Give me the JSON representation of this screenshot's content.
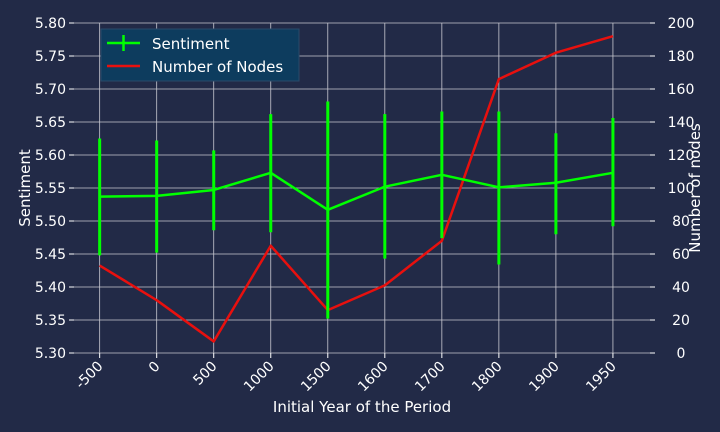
{
  "chart_data": {
    "type": "line",
    "categories": [
      "-500",
      "0",
      "500",
      "1000",
      "1500",
      "1600",
      "1700",
      "1800",
      "1900",
      "1950"
    ],
    "series": [
      {
        "name": "Sentiment",
        "axis": "left",
        "color": "#00ff00",
        "values": [
          5.537,
          5.538,
          5.547,
          5.573,
          5.517,
          5.552,
          5.57,
          5.551,
          5.558,
          5.573
        ],
        "error_low": [
          5.448,
          5.452,
          5.486,
          5.483,
          5.352,
          5.443,
          5.474,
          5.434,
          5.48,
          5.492
        ],
        "error_high": [
          5.625,
          5.622,
          5.607,
          5.662,
          5.681,
          5.662,
          5.666,
          5.666,
          5.633,
          5.656
        ]
      },
      {
        "name": "Number of Nodes",
        "axis": "right",
        "color": "#e8100e",
        "values": [
          53,
          32,
          7,
          65,
          26,
          41,
          68,
          166,
          182,
          192
        ]
      }
    ],
    "xlabel": "Initial Year of the Period",
    "ylabel": "Sentiment",
    "y2label": "Number of nodes",
    "ylim": [
      5.3,
      5.8
    ],
    "y2lim": [
      0,
      200
    ],
    "yticks": [
      "5.30",
      "5.35",
      "5.40",
      "5.45",
      "5.50",
      "5.55",
      "5.60",
      "5.65",
      "5.70",
      "5.75",
      "5.80"
    ],
    "y2ticks": [
      "0",
      "20",
      "40",
      "60",
      "80",
      "100",
      "120",
      "140",
      "160",
      "180",
      "200"
    ],
    "grid": true,
    "legend_position": "top-left",
    "background_color": "#222a47",
    "legend_background": "#0d3c5e",
    "grid_color": "#c8c8d0"
  }
}
